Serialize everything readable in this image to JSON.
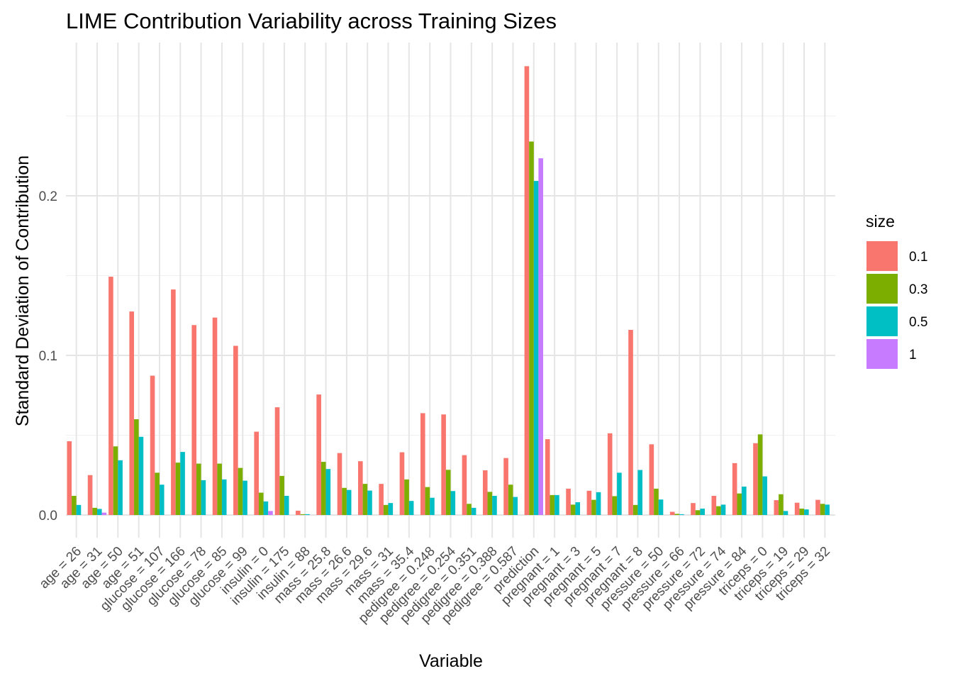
{
  "chart_data": {
    "type": "bar",
    "title": "LIME Contribution Variability across Training Sizes",
    "xlabel": "Variable",
    "ylabel": "Standard Deviation of Contribution",
    "ylim": [
      -0.006,
      0.288
    ],
    "yticks": [
      {
        "value": 0.0,
        "label": "0.0"
      },
      {
        "value": 0.1,
        "label": "0.1"
      },
      {
        "value": 0.2,
        "label": "0.2"
      }
    ],
    "grid": true,
    "legend": {
      "title": "size",
      "position": "right"
    },
    "categories": [
      "age = 26",
      "age = 31",
      "age = 50",
      "age = 51",
      "glucose = 107",
      "glucose = 166",
      "glucose = 78",
      "glucose = 85",
      "glucose = 99",
      "insulin = 0",
      "insulin = 175",
      "insulin = 88",
      "mass = 25.8",
      "mass = 26.6",
      "mass = 29.6",
      "mass = 31",
      "mass = 35.4",
      "pedigree = 0.248",
      "pedigree = 0.254",
      "pedigree = 0.351",
      "pedigree = 0.388",
      "pedigree = 0.587",
      "prediction",
      "pregnant = 1",
      "pregnant = 3",
      "pregnant = 5",
      "pregnant = 7",
      "pregnant = 8",
      "pressure = 50",
      "pressure = 66",
      "pressure = 72",
      "pressure = 74",
      "pressure = 84",
      "triceps = 0",
      "triceps = 19",
      "triceps = 29",
      "triceps = 32"
    ],
    "series": [
      {
        "name": "0.1",
        "color": "#F8766D",
        "values": [
          0.0462,
          0.025,
          0.1493,
          0.1275,
          0.0873,
          0.1413,
          0.119,
          0.1237,
          0.106,
          0.0522,
          0.0675,
          0.0027,
          0.0755,
          0.0388,
          0.0337,
          0.0195,
          0.0393,
          0.0638,
          0.063,
          0.0375,
          0.028,
          0.0357,
          0.2812,
          0.0475,
          0.0165,
          0.0152,
          0.0512,
          0.116,
          0.0443,
          0.002,
          0.0075,
          0.012,
          0.0325,
          0.045,
          0.0093,
          0.0077,
          0.0095
        ]
      },
      {
        "name": "0.3",
        "color": "#7CAE00",
        "values": [
          0.012,
          0.0045,
          0.043,
          0.06,
          0.0265,
          0.0328,
          0.0322,
          0.0322,
          0.0295,
          0.014,
          0.0245,
          0.0005,
          0.0333,
          0.017,
          0.0195,
          0.0063,
          0.0223,
          0.0175,
          0.0283,
          0.007,
          0.0145,
          0.019,
          0.234,
          0.0125,
          0.0065,
          0.0095,
          0.0118,
          0.0063,
          0.0165,
          0.0007,
          0.003,
          0.0055,
          0.0135,
          0.0505,
          0.013,
          0.004,
          0.007
        ]
      },
      {
        "name": "0.5",
        "color": "#00BFC4",
        "values": [
          0.0063,
          0.0038,
          0.0343,
          0.049,
          0.019,
          0.0395,
          0.0218,
          0.0223,
          0.0215,
          0.0085,
          0.012,
          0.0005,
          0.0288,
          0.0157,
          0.0153,
          0.0075,
          0.0088,
          0.0108,
          0.015,
          0.0045,
          0.012,
          0.0113,
          0.2093,
          0.0125,
          0.008,
          0.0143,
          0.0265,
          0.0282,
          0.0097,
          0.0005,
          0.004,
          0.0065,
          0.0178,
          0.0242,
          0.0025,
          0.0035,
          0.0065
        ]
      },
      {
        "name": "1",
        "color": "#C77CFF",
        "values": [
          0,
          0.0015,
          0,
          0,
          0,
          0,
          0,
          0,
          0,
          0.0025,
          0,
          0,
          0,
          0,
          0,
          0,
          0,
          0,
          0,
          0,
          0,
          0,
          0.2235,
          0,
          0,
          0,
          0,
          0,
          0,
          0,
          0,
          0,
          0,
          0,
          0,
          0,
          0
        ]
      }
    ]
  }
}
